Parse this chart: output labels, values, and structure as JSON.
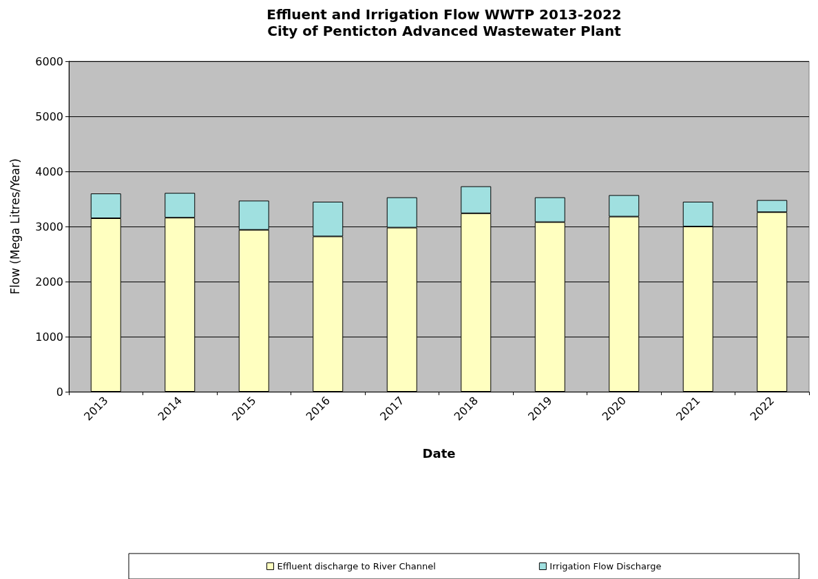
{
  "chart_data": {
    "type": "bar",
    "title": "Effluent and Irrigation Flow WWTP 2013-2022",
    "subtitle": "City of Penticton Advanced Wastewater Plant",
    "xlabel": "Date",
    "ylabel": "Flow (Mega Litres/Year)",
    "categories": [
      "2013",
      "2014",
      "2015",
      "2016",
      "2017",
      "2018",
      "2019",
      "2020",
      "2021",
      "2022"
    ],
    "series": [
      {
        "name": "Effluent discharge to River Channel",
        "color": "#ffffc0",
        "values": [
          3150,
          3160,
          2940,
          2820,
          2980,
          3240,
          3080,
          3180,
          3000,
          3260
        ]
      },
      {
        "name": "Irrigation Flow Discharge",
        "color": "#a0e0e0",
        "values": [
          450,
          450,
          530,
          630,
          550,
          490,
          450,
          390,
          450,
          220
        ]
      }
    ],
    "stacked": true,
    "ylim": [
      0,
      6000
    ],
    "yticks": [
      0,
      1000,
      2000,
      3000,
      4000,
      5000,
      6000
    ],
    "grid": "y",
    "legend": "bottom"
  }
}
